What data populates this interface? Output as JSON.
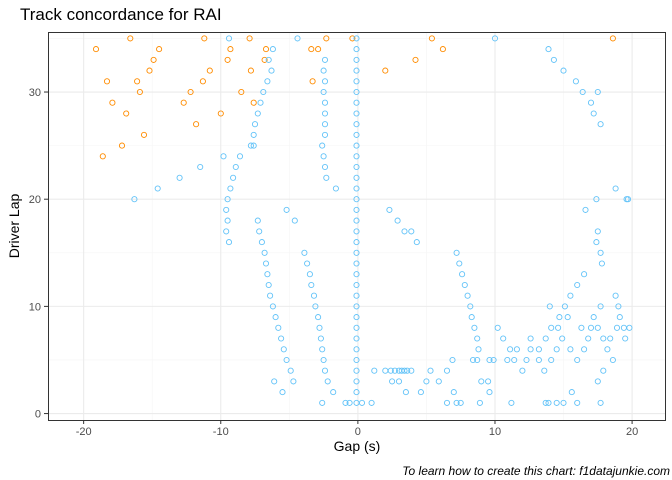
{
  "chart_data": {
    "type": "scatter",
    "title": "Track concordance for  RAI",
    "xlabel": "Gap (s)",
    "ylabel": "Driver Lap",
    "caption": "To learn how to create this chart: f1datajunkie.com",
    "xlim": [
      -22.6,
      22.4
    ],
    "ylim": [
      -0.6,
      35.6
    ],
    "xticks": [
      -20,
      -10,
      0,
      10,
      20
    ],
    "xtick_labels": [
      "-20",
      "-10",
      "0",
      "10",
      "20"
    ],
    "yticks": [
      0,
      10,
      20,
      30
    ],
    "ytick_labels": [
      "0",
      "10",
      "20",
      "30"
    ],
    "grid": true,
    "legend": "none",
    "colors": {
      "panel_border": "#333333",
      "grid_major": "#ebebeb",
      "grid_minor": "#f5f5f5",
      "ahead": "#ff8c00",
      "behind": "#63c3f8"
    },
    "series": [
      {
        "color": "#ff8c00",
        "points": [
          [
            -19.1,
            34
          ],
          [
            -18.6,
            24
          ],
          [
            -18.3,
            31
          ],
          [
            -17.9,
            29
          ],
          [
            -17.2,
            25
          ],
          [
            -16.9,
            28
          ],
          [
            -16.6,
            35
          ],
          [
            -16.1,
            31
          ],
          [
            -15.9,
            30
          ],
          [
            -15.6,
            26
          ],
          [
            -15.2,
            32
          ],
          [
            -14.9,
            33
          ],
          [
            -14.5,
            34
          ],
          [
            -12.7,
            29
          ],
          [
            -12.2,
            30
          ],
          [
            -11.8,
            27
          ],
          [
            -11.3,
            31
          ],
          [
            -11.2,
            35
          ],
          [
            -10.8,
            32
          ],
          [
            -10.0,
            28
          ],
          [
            -9.5,
            33
          ],
          [
            -9.3,
            34
          ],
          [
            -8.5,
            30
          ],
          [
            -7.9,
            35
          ],
          [
            -7.8,
            32
          ],
          [
            -7.6,
            29
          ],
          [
            -6.8,
            33
          ],
          [
            -6.7,
            34
          ],
          [
            -3.4,
            34
          ],
          [
            -2.9,
            34
          ],
          [
            -2.3,
            35
          ],
          [
            -3.3,
            31
          ],
          [
            -0.4,
            35
          ],
          [
            2.0,
            32
          ],
          [
            4.2,
            33
          ],
          [
            5.4,
            35
          ],
          [
            6.2,
            34
          ],
          [
            18.6,
            35
          ]
        ]
      },
      {
        "color": "#63c3f8",
        "points": [
          [
            -9.4,
            35
          ],
          [
            -6.2,
            34
          ],
          [
            -4.4,
            35
          ],
          [
            -6.5,
            33
          ],
          [
            -6.3,
            32
          ],
          [
            -6.6,
            31
          ],
          [
            -6.9,
            30
          ],
          [
            -7.1,
            29
          ],
          [
            -7.3,
            28
          ],
          [
            -7.5,
            27
          ],
          [
            -7.6,
            26
          ],
          [
            -7.8,
            25
          ],
          [
            -7.6,
            25
          ],
          [
            -8.6,
            24
          ],
          [
            -8.9,
            23
          ],
          [
            -9.1,
            22
          ],
          [
            -9.3,
            21
          ],
          [
            -9.5,
            20
          ],
          [
            -9.6,
            19
          ],
          [
            -9.5,
            18
          ],
          [
            -9.6,
            17
          ],
          [
            -9.4,
            16
          ],
          [
            -9.8,
            24
          ],
          [
            -11.5,
            23
          ],
          [
            -13.0,
            22
          ],
          [
            -14.6,
            21
          ],
          [
            -16.3,
            20
          ],
          [
            -7.3,
            18
          ],
          [
            -7.2,
            17
          ],
          [
            -7.0,
            16
          ],
          [
            -6.8,
            15
          ],
          [
            -6.7,
            14
          ],
          [
            -6.6,
            13
          ],
          [
            -6.5,
            12
          ],
          [
            -6.4,
            11
          ],
          [
            -6.2,
            10
          ],
          [
            -6.0,
            9
          ],
          [
            -5.8,
            8
          ],
          [
            -5.6,
            7
          ],
          [
            -5.4,
            6
          ],
          [
            -5.2,
            5
          ],
          [
            -4.9,
            4
          ],
          [
            -4.7,
            3
          ],
          [
            -6.1,
            3
          ],
          [
            -5.5,
            2
          ],
          [
            -5.2,
            19
          ],
          [
            -4.6,
            18
          ],
          [
            -2.4,
            33
          ],
          [
            -2.5,
            32
          ],
          [
            -2.4,
            31
          ],
          [
            -2.5,
            30
          ],
          [
            -2.4,
            29
          ],
          [
            -2.4,
            28
          ],
          [
            -2.4,
            27
          ],
          [
            -2.4,
            26
          ],
          [
            -2.6,
            25
          ],
          [
            -2.5,
            24
          ],
          [
            -2.4,
            23
          ],
          [
            -2.3,
            22
          ],
          [
            -1.6,
            21
          ],
          [
            -3.9,
            15
          ],
          [
            -3.7,
            14
          ],
          [
            -3.5,
            13
          ],
          [
            -3.4,
            12
          ],
          [
            -3.2,
            11
          ],
          [
            -3.1,
            10
          ],
          [
            -2.9,
            9
          ],
          [
            -2.8,
            8
          ],
          [
            -2.7,
            7
          ],
          [
            -2.6,
            6
          ],
          [
            -2.5,
            5
          ],
          [
            -2.4,
            4
          ],
          [
            -2.2,
            3
          ],
          [
            -1.8,
            2
          ],
          [
            -2.6,
            1
          ],
          [
            -0.1,
            35
          ],
          [
            -0.1,
            34
          ],
          [
            -0.1,
            33
          ],
          [
            -0.1,
            32
          ],
          [
            -0.1,
            31
          ],
          [
            -0.1,
            30
          ],
          [
            -0.1,
            29
          ],
          [
            -0.1,
            28
          ],
          [
            -0.1,
            27
          ],
          [
            -0.1,
            26
          ],
          [
            -0.1,
            25
          ],
          [
            -0.1,
            24
          ],
          [
            -0.1,
            23
          ],
          [
            -0.1,
            22
          ],
          [
            -0.1,
            21
          ],
          [
            -0.1,
            20
          ],
          [
            -0.1,
            19
          ],
          [
            -0.1,
            18
          ],
          [
            -0.1,
            17
          ],
          [
            -0.1,
            16
          ],
          [
            -0.1,
            15
          ],
          [
            -0.1,
            14
          ],
          [
            -0.1,
            13
          ],
          [
            -0.1,
            12
          ],
          [
            -0.1,
            11
          ],
          [
            -0.1,
            10
          ],
          [
            -0.1,
            9
          ],
          [
            -0.1,
            8
          ],
          [
            -0.1,
            7
          ],
          [
            -0.1,
            6
          ],
          [
            -0.1,
            5
          ],
          [
            -0.1,
            4
          ],
          [
            -0.1,
            3
          ],
          [
            -0.1,
            2
          ],
          [
            -0.1,
            1
          ],
          [
            0.3,
            1
          ],
          [
            -0.6,
            1
          ],
          [
            -0.9,
            1
          ],
          [
            1.0,
            1
          ],
          [
            1.2,
            4
          ],
          [
            2.0,
            4
          ],
          [
            2.4,
            4
          ],
          [
            2.7,
            4
          ],
          [
            3.0,
            4
          ],
          [
            3.2,
            4
          ],
          [
            3.4,
            4
          ],
          [
            3.6,
            4
          ],
          [
            3.9,
            4
          ],
          [
            2.5,
            3
          ],
          [
            3.5,
            2
          ],
          [
            2.3,
            19
          ],
          [
            2.9,
            18
          ],
          [
            3.4,
            17
          ],
          [
            3.9,
            17
          ],
          [
            4.3,
            16
          ],
          [
            7.2,
            15
          ],
          [
            7.4,
            14
          ],
          [
            7.6,
            13
          ],
          [
            7.8,
            12
          ],
          [
            8.0,
            11
          ],
          [
            8.2,
            10
          ],
          [
            8.3,
            9
          ],
          [
            8.5,
            8
          ],
          [
            8.7,
            7
          ],
          [
            8.8,
            6
          ],
          [
            8.4,
            5
          ],
          [
            8.7,
            5
          ],
          [
            9.6,
            5
          ],
          [
            9.9,
            5
          ],
          [
            6.9,
            5
          ],
          [
            6.5,
            4
          ],
          [
            5.3,
            4
          ],
          [
            5.0,
            3
          ],
          [
            5.9,
            3
          ],
          [
            7.0,
            2
          ],
          [
            4.6,
            2
          ],
          [
            3.0,
            3
          ],
          [
            6.5,
            1
          ],
          [
            7.2,
            1
          ],
          [
            7.5,
            1
          ],
          [
            9.0,
            3
          ],
          [
            9.5,
            3
          ],
          [
            9.6,
            2
          ],
          [
            8.9,
            1
          ],
          [
            11.2,
            1
          ],
          [
            10.0,
            35
          ],
          [
            13.9,
            34
          ],
          [
            14.3,
            33
          ],
          [
            15.0,
            32
          ],
          [
            15.9,
            31
          ],
          [
            16.4,
            30
          ],
          [
            17.5,
            30
          ],
          [
            17.0,
            29
          ],
          [
            17.2,
            28
          ],
          [
            17.7,
            27
          ],
          [
            18.8,
            21
          ],
          [
            17.4,
            20
          ],
          [
            19.6,
            20
          ],
          [
            19.7,
            20
          ],
          [
            16.6,
            19
          ],
          [
            17.5,
            17
          ],
          [
            17.4,
            16
          ],
          [
            17.7,
            15
          ],
          [
            17.8,
            14
          ],
          [
            16.5,
            13
          ],
          [
            16.0,
            12
          ],
          [
            15.5,
            11
          ],
          [
            15.1,
            10
          ],
          [
            14.7,
            9
          ],
          [
            14.1,
            8
          ],
          [
            13.7,
            7
          ],
          [
            13.2,
            6
          ],
          [
            14.0,
            10
          ],
          [
            18.8,
            11
          ],
          [
            19.0,
            10
          ],
          [
            19.1,
            9
          ],
          [
            19.4,
            8
          ],
          [
            19.5,
            7
          ],
          [
            19.8,
            8
          ],
          [
            18.9,
            8
          ],
          [
            17.7,
            10
          ],
          [
            17.2,
            9
          ],
          [
            17.0,
            8
          ],
          [
            16.8,
            7
          ],
          [
            16.5,
            6
          ],
          [
            16.0,
            5
          ],
          [
            15.5,
            6
          ],
          [
            14.9,
            7
          ],
          [
            14.6,
            8
          ],
          [
            15.3,
            9
          ],
          [
            16.3,
            8
          ],
          [
            17.5,
            8
          ],
          [
            18.2,
            6
          ],
          [
            18.6,
            5
          ],
          [
            17.9,
            4
          ],
          [
            17.5,
            3
          ],
          [
            17.9,
            7
          ],
          [
            18.4,
            7
          ],
          [
            11.6,
            6
          ],
          [
            12.6,
            6
          ],
          [
            12.3,
            5
          ],
          [
            12.0,
            4
          ],
          [
            10.2,
            8
          ],
          [
            10.6,
            7
          ],
          [
            11.1,
            6
          ],
          [
            10.9,
            5
          ],
          [
            13.6,
            4
          ],
          [
            14.1,
            5
          ],
          [
            14.5,
            6
          ],
          [
            13.2,
            5
          ],
          [
            12.6,
            7
          ],
          [
            11.4,
            5
          ],
          [
            13.7,
            1
          ],
          [
            13.9,
            1
          ],
          [
            14.5,
            1
          ],
          [
            15.0,
            1
          ],
          [
            16.0,
            1
          ],
          [
            17.7,
            1
          ],
          [
            15.6,
            2
          ]
        ]
      }
    ]
  }
}
